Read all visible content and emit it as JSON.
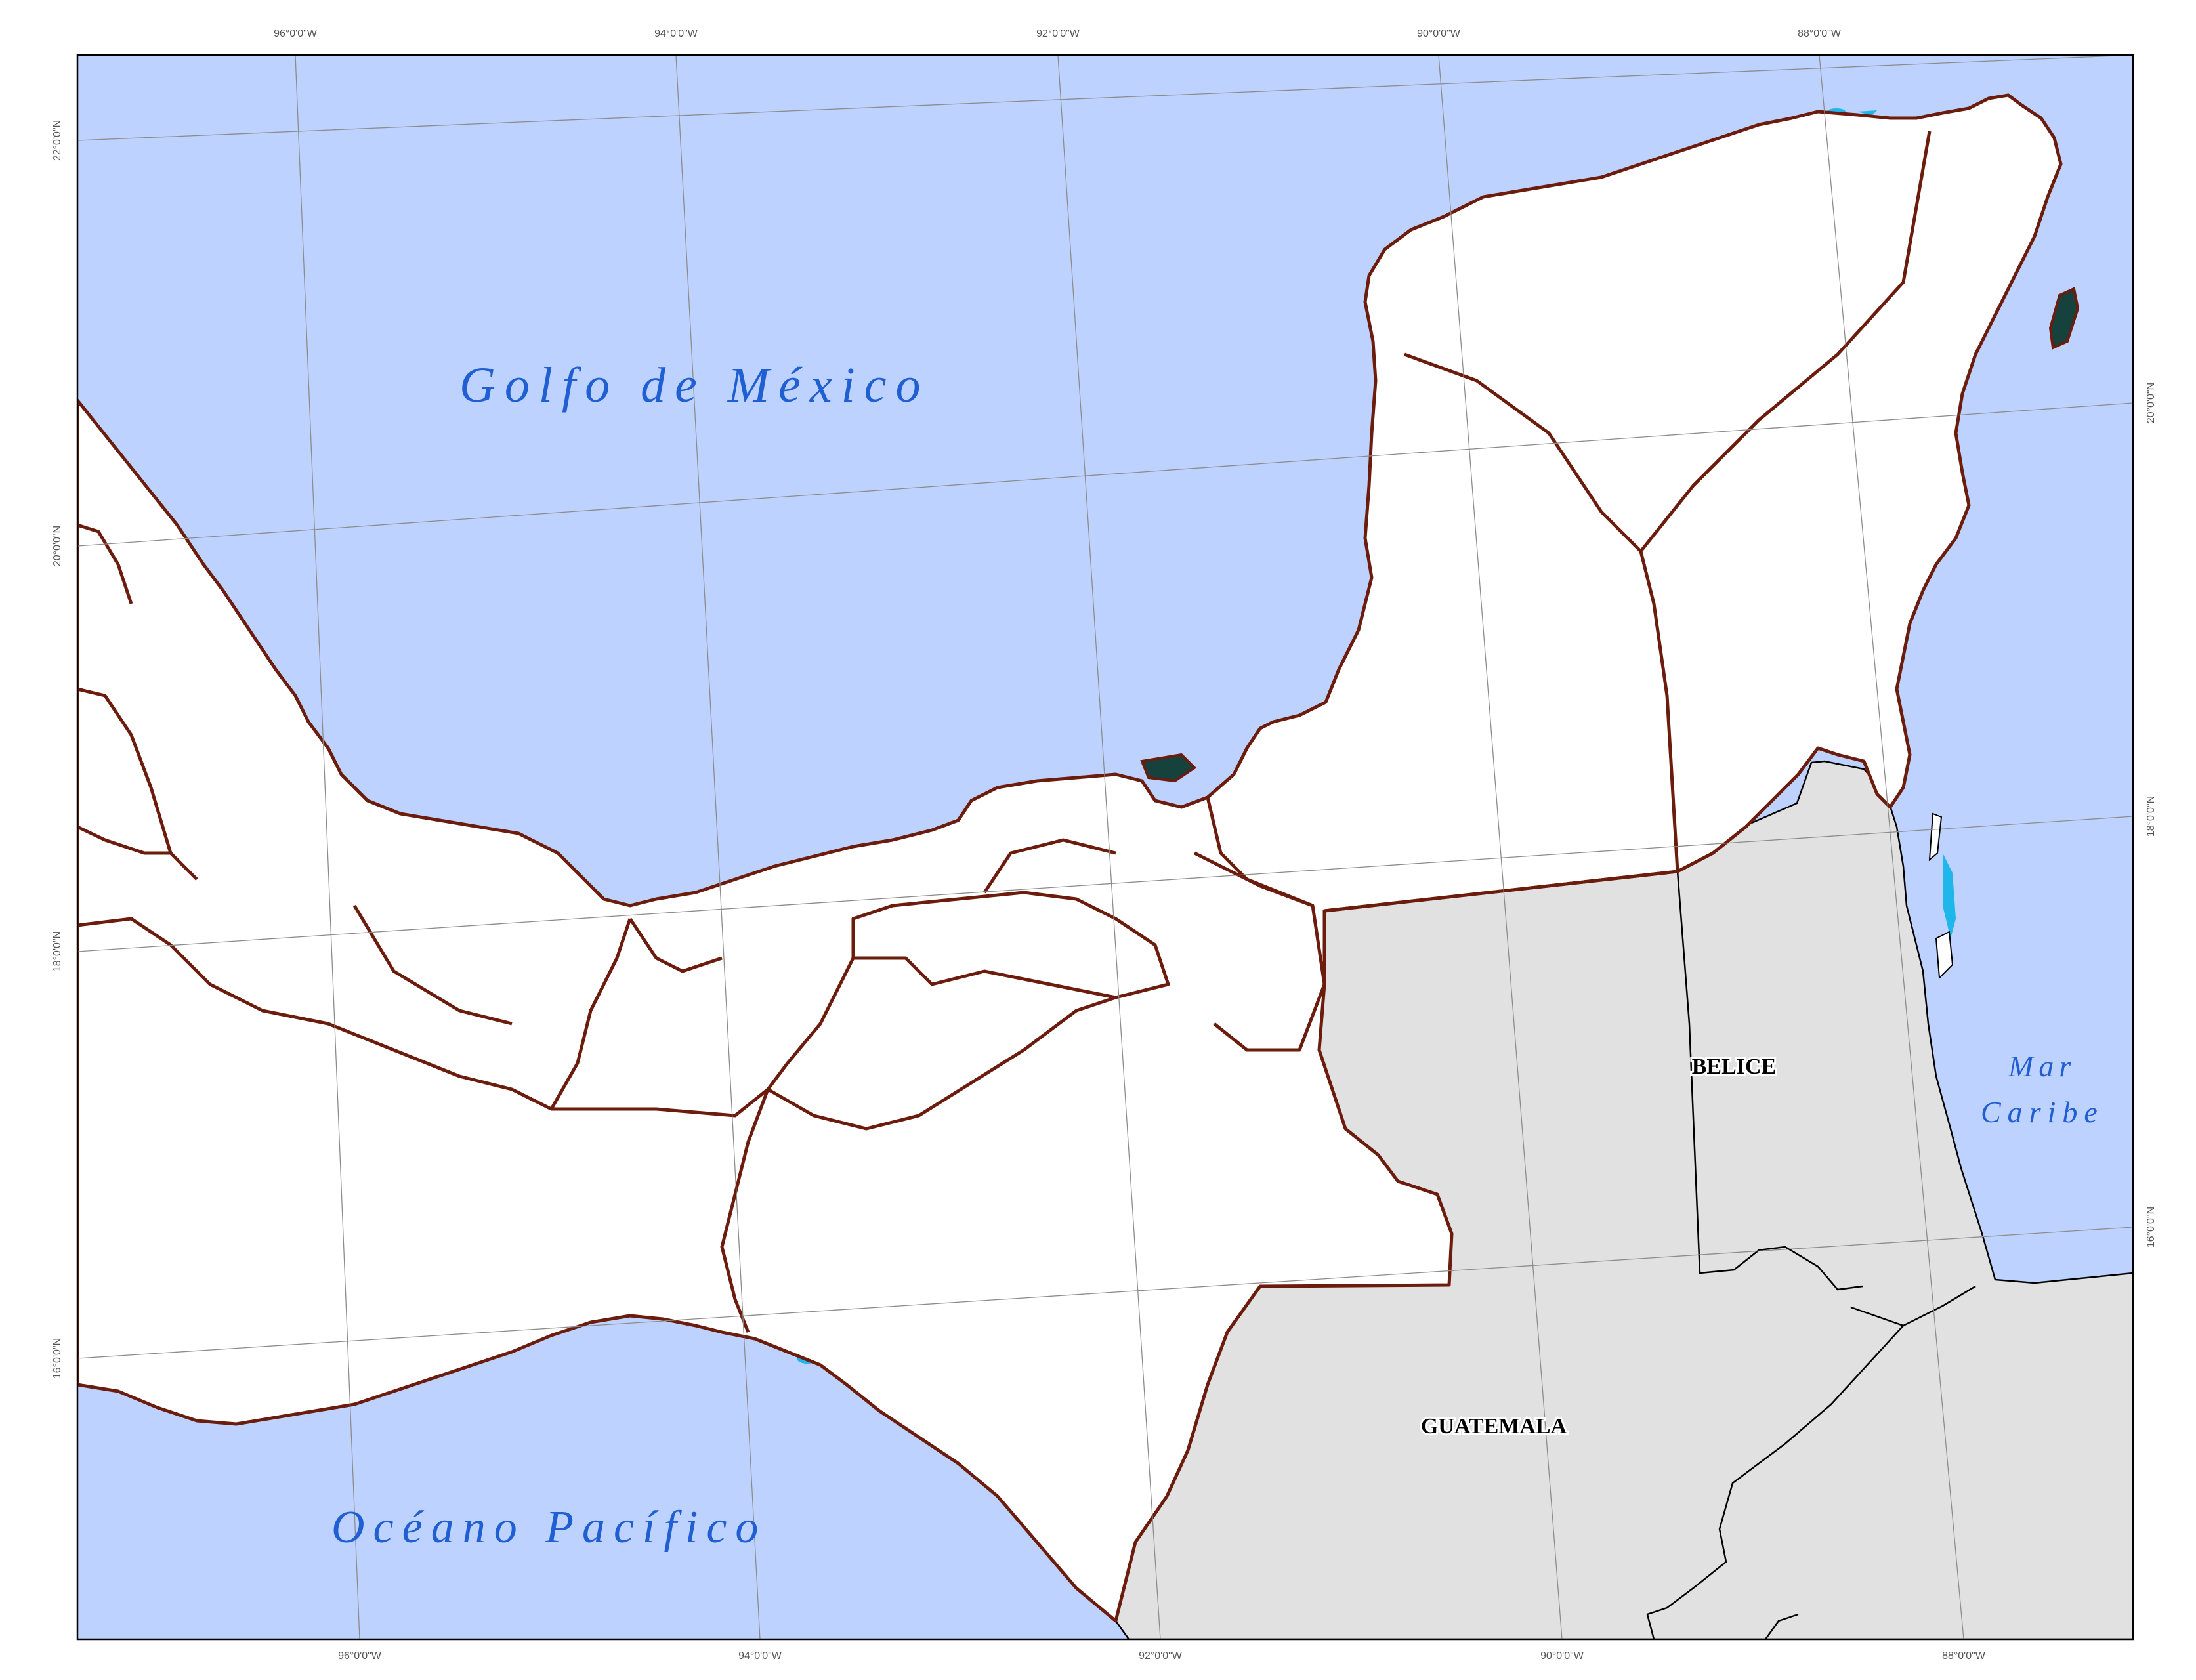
{
  "map": {
    "colors": {
      "ocean": "#bed2ff",
      "neighbor_land": "#e1e1e1",
      "forest_dense": "#15423c",
      "forest_fragmented": "#b5be24",
      "non_forest": "#ffffff",
      "state_border": "#6b1c0c",
      "inland_water": "#1fb6ea",
      "graticule": "#8c8c8c"
    },
    "water_labels": {
      "gulf": "Golfo de México",
      "pacific": "Océano Pacífico",
      "caribbean_line1": "Mar",
      "caribbean_line2": "Caribe"
    },
    "country_labels": {
      "belize": "BELICE",
      "guatemala": "GUATEMALA"
    },
    "ticks": {
      "top": [
        "96°0'0\"W",
        "94°0'0\"W",
        "92°0'0\"W",
        "90°0'0\"W",
        "88°0'0\"W"
      ],
      "bottom": [
        "96°0'0\"W",
        "94°0'0\"W",
        "92°0'0\"W",
        "90°0'0\"W",
        "88°0'0\"W"
      ],
      "left": [
        "22°0'0\"N",
        "20°0'0\"N",
        "18°0'0\"N",
        "16°0'0\"N"
      ],
      "right": [
        "20°0'0\"N",
        "18°0'0\"N",
        "16°0'0\"N"
      ]
    }
  }
}
